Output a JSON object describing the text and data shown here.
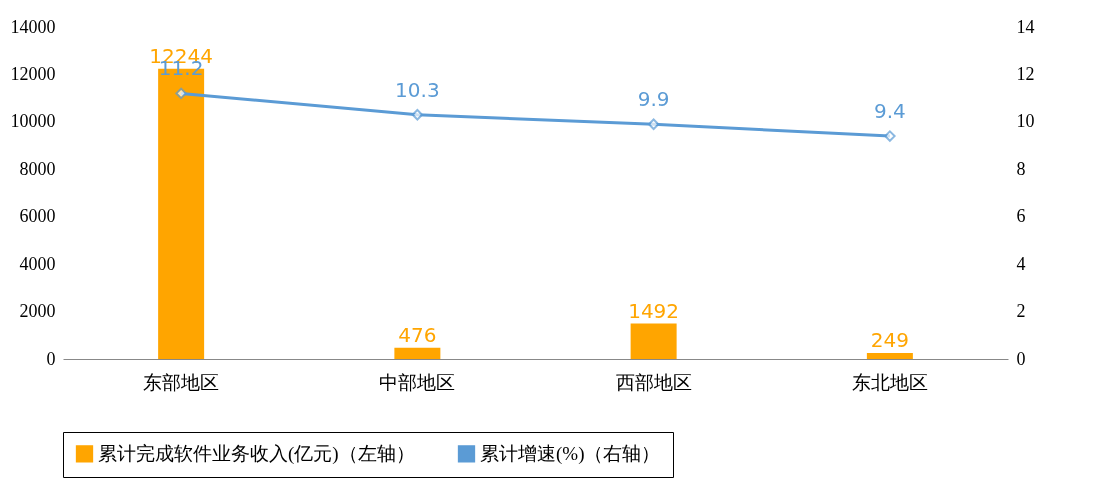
{
  "chart_data": {
    "type": "bar",
    "categories": [
      "东部地区",
      "中部地区",
      "西部地区",
      "东北地区"
    ],
    "series": [
      {
        "name": "累计完成软件业务收入(亿元)（左轴）",
        "color": "#ffa500",
        "values": [
          12244,
          476,
          1492,
          249
        ]
      },
      {
        "name": "累计增速(%)（右轴）",
        "type": "line",
        "axis": "y2",
        "color": "#5b9bd5",
        "values": [
          11.2,
          10.3,
          9.9,
          9.4
        ]
      }
    ],
    "ylim": [
      0,
      14000
    ],
    "yticks": [
      0,
      2000,
      4000,
      6000,
      8000,
      10000,
      12000,
      14000
    ],
    "y2lim": [
      0,
      14
    ],
    "y2ticks": [
      0,
      2,
      4,
      6,
      8,
      10,
      12,
      14
    ],
    "data_labels": true,
    "grid": false,
    "legend": "bottom",
    "marker": "diamond",
    "line_style": "solid"
  }
}
